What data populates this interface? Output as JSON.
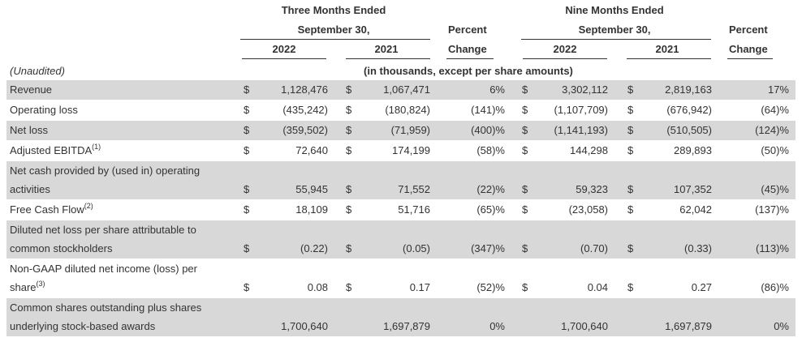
{
  "header": {
    "three_months_line1": "Three Months Ended",
    "three_months_line2": "September 30,",
    "nine_months_line1": "Nine Months Ended",
    "nine_months_line2": "September 30,",
    "percent_line1": "Percent",
    "percent_line2": "Change",
    "year_2022": "2022",
    "year_2021": "2021",
    "unaudited": "(Unaudited)",
    "units_note": "(in thousands, except per share amounts)"
  },
  "rows": [
    {
      "label": "Revenue",
      "sup": "",
      "label2": "",
      "d1": "$",
      "v1": "1,128,476",
      "d2": "$",
      "v2": "1,067,471",
      "p1": "6%",
      "d3": "$",
      "v3": "3,302,112",
      "d4": "$",
      "v4": "2,819,163",
      "p2": "17%"
    },
    {
      "label": "Operating loss",
      "sup": "",
      "label2": "",
      "d1": "$",
      "v1": "(435,242)",
      "d2": "$",
      "v2": "(180,824)",
      "p1": "(141)%",
      "d3": "$",
      "v3": "(1,107,709)",
      "d4": "$",
      "v4": "(676,942)",
      "p2": "(64)%"
    },
    {
      "label": "Net loss",
      "sup": "",
      "label2": "",
      "d1": "$",
      "v1": "(359,502)",
      "d2": "$",
      "v2": "(71,959)",
      "p1": "(400)%",
      "d3": "$",
      "v3": "(1,141,193)",
      "d4": "$",
      "v4": "(510,505)",
      "p2": "(124)%"
    },
    {
      "label": "Adjusted EBITDA",
      "sup": "(1)",
      "label2": "",
      "d1": "$",
      "v1": "72,640",
      "d2": "$",
      "v2": "174,199",
      "p1": "(58)%",
      "d3": "$",
      "v3": "144,298",
      "d4": "$",
      "v4": "289,893",
      "p2": "(50)%"
    },
    {
      "label": "Net cash provided by (used in) operating",
      "sup": "",
      "label2": "activities",
      "d1": "$",
      "v1": "55,945",
      "d2": "$",
      "v2": "71,552",
      "p1": "(22)%",
      "d3": "$",
      "v3": "59,323",
      "d4": "$",
      "v4": "107,352",
      "p2": "(45)%"
    },
    {
      "label": "Free Cash Flow",
      "sup": "(2)",
      "label2": "",
      "d1": "$",
      "v1": "18,109",
      "d2": "$",
      "v2": "51,716",
      "p1": "(65)%",
      "d3": "$",
      "v3": "(23,058)",
      "d4": "$",
      "v4": "62,042",
      "p2": "(137)%"
    },
    {
      "label": "Diluted net loss per share attributable to",
      "sup": "",
      "label2": "common stockholders",
      "d1": "$",
      "v1": "(0.22)",
      "d2": "$",
      "v2": "(0.05)",
      "p1": "(347)%",
      "d3": "$",
      "v3": "(0.70)",
      "d4": "$",
      "v4": "(0.33)",
      "p2": "(113)%"
    },
    {
      "label": "Non-GAAP diluted net income (loss) per",
      "sup": "",
      "label2": "share",
      "sup2": "(3)",
      "d1": "$",
      "v1": "0.08",
      "d2": "$",
      "v2": "0.17",
      "p1": "(52)%",
      "d3": "$",
      "v3": "0.04",
      "d4": "$",
      "v4": "0.27",
      "p2": "(86)%"
    },
    {
      "label": "Common shares outstanding plus shares",
      "sup": "",
      "label2": "underlying stock-based awards",
      "d1": "",
      "v1": "1,700,640",
      "d2": "",
      "v2": "1,697,879",
      "p1": "0%",
      "d3": "",
      "v3": "1,700,640",
      "d4": "",
      "v4": "1,697,879",
      "p2": "0%"
    }
  ]
}
